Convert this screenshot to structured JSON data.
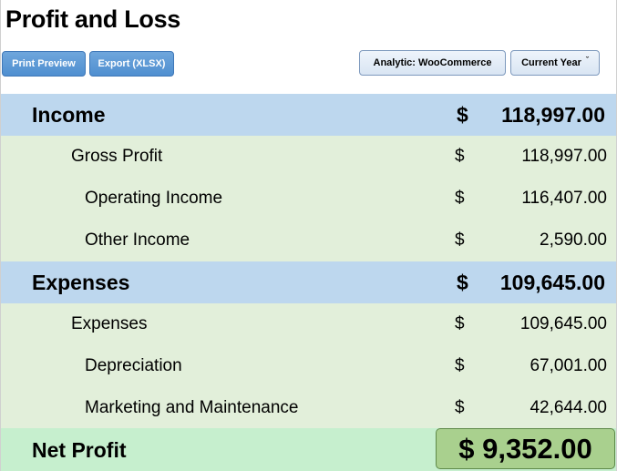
{
  "title": "Profit and Loss",
  "toolbar": {
    "print_label": "Print Preview",
    "export_label": "Export (XLSX)",
    "analytic_label": "Analytic: WooCommerce",
    "period_label": "Current Year"
  },
  "income": {
    "label": "Income",
    "currency": "$",
    "amount": "118,997.00",
    "items": [
      {
        "label": "Gross Profit",
        "currency": "$",
        "amount": "118,997.00"
      },
      {
        "label": "Operating Income",
        "currency": "$",
        "amount": "116,407.00"
      },
      {
        "label": "Other Income",
        "currency": "$",
        "amount": "2,590.00"
      }
    ]
  },
  "expenses": {
    "label": "Expenses",
    "currency": "$",
    "amount": "109,645.00",
    "items": [
      {
        "label": "Expenses",
        "currency": "$",
        "amount": "109,645.00"
      },
      {
        "label": "Depreciation",
        "currency": "$",
        "amount": "67,001.00"
      },
      {
        "label": "Marketing and Maintenance",
        "currency": "$",
        "amount": "42,644.00"
      }
    ]
  },
  "net_profit": {
    "label": "Net Profit",
    "amount": "$ 9,352.00"
  },
  "colors": {
    "section_header_bg": "#bdd7ee",
    "line_item_bg": "#e2efda",
    "net_row_bg": "#c6efce",
    "net_box_bg": "#a9d08e",
    "button_blue": "#5b9bd5"
  },
  "icons": {
    "period_dropdown": "caret-down-icon"
  }
}
